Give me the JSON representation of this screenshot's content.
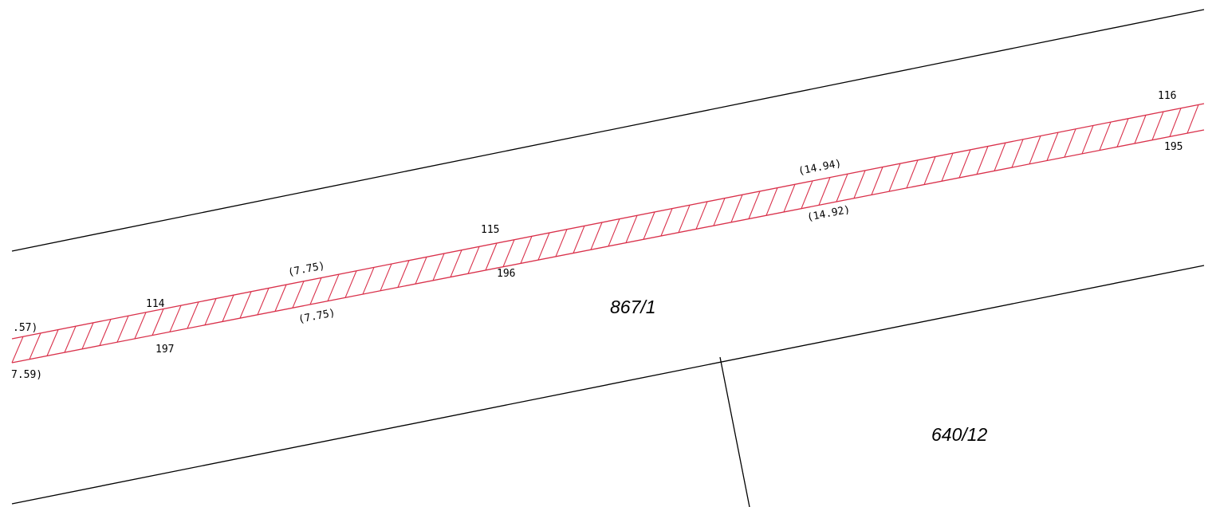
{
  "colors": {
    "background": "#ffffff",
    "boundary_line": "#000000",
    "easement_hatch": "#d9304a"
  },
  "parcels": [
    {
      "number": "867/1"
    },
    {
      "number": "640/12"
    }
  ],
  "points": {
    "p114": "114",
    "p115": "115",
    "p116": "116",
    "p195": "195",
    "p196": "196",
    "p197": "197"
  },
  "measurements": {
    "m_left_top": ".57)",
    "m_left_bottom": "7.59)",
    "m_7_75_top": "(7.75)",
    "m_7_75_bottom": "(7.75)",
    "m_14_94": "(14.94)",
    "m_14_92": "(14.92)"
  }
}
